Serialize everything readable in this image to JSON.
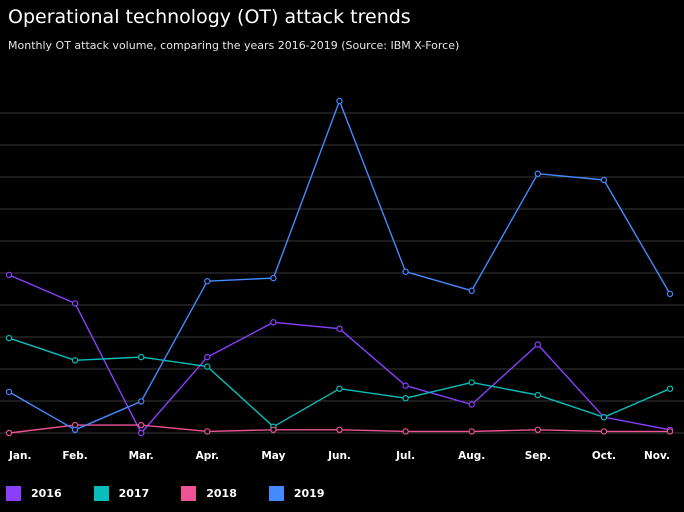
{
  "header": {
    "title": "Operational technology (OT) attack trends",
    "subtitle": "Monthly OT attack volume, comparing the years 2016-2019 (Source: IBM X-Force)"
  },
  "colors": {
    "background": "#000000",
    "grid": "#3a3a3a",
    "text": "#ffffff"
  },
  "chart_data": {
    "type": "line",
    "title": "Operational technology (OT) attack trends",
    "subtitle": "Monthly OT attack volume, comparing the years 2016-2019 (Source: IBM X-Force)",
    "categories": [
      "Jan.",
      "Feb.",
      "Mar.",
      "Apr.",
      "May",
      "Jun.",
      "Jul.",
      "Aug.",
      "Sep.",
      "Oct.",
      "Nov."
    ],
    "ylim": [
      0,
      105
    ],
    "grid_lines": 11,
    "grid": true,
    "y_tick_labels": false,
    "legend_position": "bottom-left",
    "series": [
      {
        "name": "2016",
        "color": "#8a3ffc",
        "values": [
          50,
          41,
          0,
          24,
          35,
          33,
          15,
          9,
          28,
          5,
          1
        ]
      },
      {
        "name": "2017",
        "color": "#08bdba",
        "values": [
          30,
          23,
          24,
          21,
          2,
          14,
          11,
          16,
          12,
          5,
          14
        ]
      },
      {
        "name": "2018",
        "color": "#ee5396",
        "values": [
          0,
          2.5,
          2.5,
          0.5,
          1,
          1,
          0.5,
          0.5,
          1,
          0.5,
          0.5
        ]
      },
      {
        "name": "2019",
        "color": "#4589ff",
        "values": [
          13,
          1,
          10,
          48,
          49,
          105,
          51,
          45,
          82,
          80,
          44
        ]
      }
    ]
  }
}
